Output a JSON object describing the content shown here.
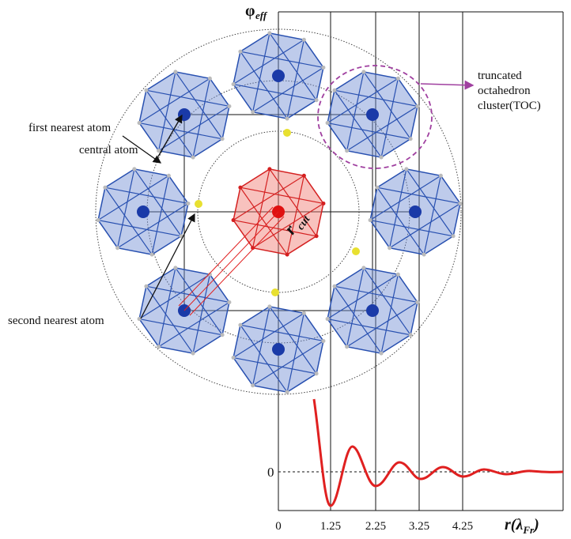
{
  "labels": {
    "central_atom": "central atom",
    "first_nearest_atom": "first nearest atom",
    "second_nearest_atom": "second nearest atom",
    "toc": [
      "truncated",
      "octahedron",
      "cluster(TOC)"
    ],
    "r_cut": {
      "symbol": "r",
      "subscript": "cut"
    }
  },
  "axes": {
    "y_label": {
      "symbol": "φ",
      "subscript": "eff"
    },
    "x_label": {
      "symbol": "r",
      "open": "(λ",
      "subscript": "Fr",
      "close": ")"
    },
    "y_tick": "0",
    "x_ticks": [
      "0",
      "1.25",
      "2.25",
      "3.25",
      "4.25"
    ]
  }
}
